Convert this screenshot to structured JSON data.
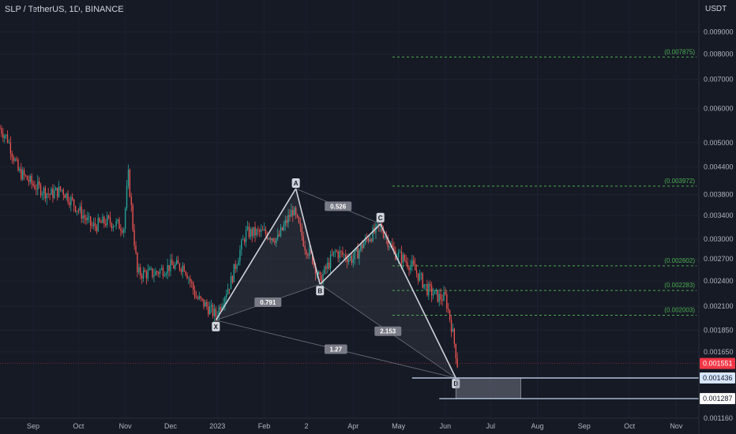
{
  "header": {
    "symbol_title": "SLP / TetherUS, 1D, BINANCE",
    "currency": "USDT"
  },
  "colors": {
    "background": "#161a25",
    "up": "#26a69a",
    "down": "#ef5350",
    "pattern_line": "#cfd2da",
    "fib": "#4caf50",
    "current_price": "#f23645",
    "level_line": "#d1e4ff"
  },
  "chart_data": {
    "type": "candlestick",
    "title": "SLP / TetherUS, 1D, BINANCE",
    "y_unit": "USDT",
    "ylim": [
      0.00116,
      0.0098
    ],
    "y_scale": "log",
    "y_ticks": [
      "0.009000",
      "0.008000",
      "0.007000",
      "0.006000",
      "0.005000",
      "0.004400",
      "0.003800",
      "0.003400",
      "0.003000",
      "0.002700",
      "0.002400",
      "0.002100",
      "0.001850",
      "0.001650",
      "0.001160"
    ],
    "x_ticks": [
      "Sep",
      "Oct",
      "Nov",
      "Dec",
      "2023",
      "Feb",
      "2",
      "Apr",
      "May",
      "Jun",
      "Jul",
      "Aug",
      "Sep",
      "Oct",
      "Nov"
    ],
    "x_tick_dates": [
      "2022-09-01",
      "2022-10-01",
      "2022-11-01",
      "2022-12-01",
      "2023-01-01",
      "2023-02-01",
      "2023-03-01",
      "2023-04-01",
      "2023-05-01",
      "2023-06-01",
      "2023-07-01",
      "2023-08-01",
      "2023-09-01",
      "2023-10-01",
      "2023-11-01"
    ],
    "price_path": [
      [
        "2022-08-10",
        0.0054
      ],
      [
        "2022-08-15",
        0.0051
      ],
      [
        "2022-08-22",
        0.0043
      ],
      [
        "2022-09-01",
        0.004
      ],
      [
        "2022-09-12",
        0.0038
      ],
      [
        "2022-09-20",
        0.0039
      ],
      [
        "2022-10-01",
        0.0035
      ],
      [
        "2022-10-10",
        0.0032
      ],
      [
        "2022-10-20",
        0.0033
      ],
      [
        "2022-10-31",
        0.0032
      ],
      [
        "2022-11-03",
        0.0042
      ],
      [
        "2022-11-06",
        0.0032
      ],
      [
        "2022-11-09",
        0.0025
      ],
      [
        "2022-11-20",
        0.0025
      ],
      [
        "2022-12-01",
        0.0026
      ],
      [
        "2022-12-10",
        0.0026
      ],
      [
        "2022-12-18",
        0.0022
      ],
      [
        "2022-12-25",
        0.0021
      ],
      [
        "2022-12-31",
        0.002
      ],
      [
        "2023-01-10",
        0.0024
      ],
      [
        "2023-01-20",
        0.0031
      ],
      [
        "2023-02-01",
        0.0031
      ],
      [
        "2023-02-10",
        0.003
      ],
      [
        "2023-02-20",
        0.0035
      ],
      [
        "2023-02-28",
        0.0029
      ],
      [
        "2023-03-05",
        0.0027
      ],
      [
        "2023-03-10",
        0.0024
      ],
      [
        "2023-03-20",
        0.0028
      ],
      [
        "2023-04-01",
        0.0027
      ],
      [
        "2023-04-10",
        0.003
      ],
      [
        "2023-04-19",
        0.0032
      ],
      [
        "2023-04-28",
        0.0028
      ],
      [
        "2023-05-10",
        0.0026
      ],
      [
        "2023-05-20",
        0.0023
      ],
      [
        "2023-05-28",
        0.0022
      ],
      [
        "2023-06-01",
        0.0022
      ],
      [
        "2023-06-05",
        0.0019
      ],
      [
        "2023-06-09",
        0.00155
      ]
    ],
    "harmonic_pattern": {
      "points": [
        {
          "label": "X",
          "date": "2022-12-31",
          "price": 0.00195
        },
        {
          "label": "A",
          "date": "2023-02-22",
          "price": 0.00392
        },
        {
          "label": "B",
          "date": "2023-03-10",
          "price": 0.00236
        },
        {
          "label": "C",
          "date": "2023-04-19",
          "price": 0.00325
        },
        {
          "label": "D",
          "date": "2023-06-08",
          "price": 0.001435
        }
      ],
      "ratios": [
        {
          "label": "0.791"
        },
        {
          "label": "0.526"
        },
        {
          "label": "2.153"
        },
        {
          "label": "1.27"
        }
      ]
    },
    "fib_levels": [
      {
        "label": "(0.007875)",
        "price": 0.007875
      },
      {
        "label": "(0.003972)",
        "price": 0.003972
      },
      {
        "label": "(0.002602)",
        "price": 0.002602
      },
      {
        "label": "(0.002283)",
        "price": 0.002283
      },
      {
        "label": "(0.002003)",
        "price": 0.002003
      }
    ],
    "current_price": {
      "label": "0.001551",
      "price": 0.001551
    },
    "levels": [
      {
        "label": "0.001436",
        "price": 0.001436
      },
      {
        "label": "0.001287",
        "price": 0.001287
      }
    ]
  }
}
